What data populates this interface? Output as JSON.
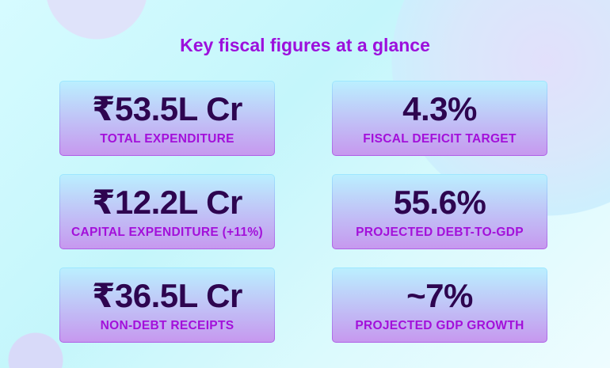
{
  "title": "Key fiscal figures at a glance",
  "cards": [
    {
      "value": "₹53.5L Cr",
      "label": "TOTAL EXPENDITURE"
    },
    {
      "value": "4.3%",
      "label": "FISCAL DEFICIT TARGET"
    },
    {
      "value": "₹12.2L Cr",
      "label": "CAPITAL EXPENDITURE (+11%)"
    },
    {
      "value": "55.6%",
      "label": "PROJECTED DEBT-TO-GDP"
    },
    {
      "value": "₹36.5L Cr",
      "label": "NON-DEBT RECEIPTS"
    },
    {
      "value": "~7%",
      "label": "PROJECTED GDP GROWTH"
    }
  ],
  "colors": {
    "accent": "#a310da",
    "value": "#2e0550"
  }
}
